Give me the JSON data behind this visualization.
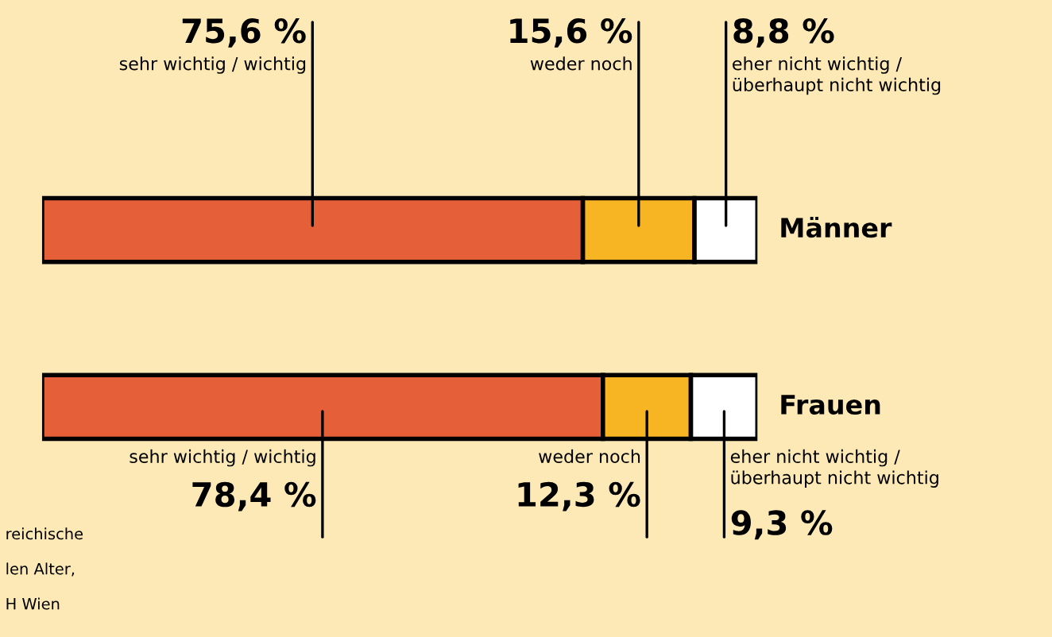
{
  "chart_data": {
    "type": "bar",
    "orientation": "horizontal",
    "stacked": true,
    "xlim": [
      0,
      100
    ],
    "tick_labels": false,
    "legend": false,
    "categories": [
      "Männer",
      "Frauen"
    ],
    "series": [
      {
        "name": "sehr wichtig / wichtig",
        "color": "#e55f38",
        "values": [
          75.6,
          78.4
        ],
        "value_labels": [
          "75,6 %",
          "78,4 %"
        ]
      },
      {
        "name": "weder noch",
        "color": "#f7b423",
        "values": [
          15.6,
          12.3
        ],
        "value_labels": [
          "15,6 %",
          "12,3 %"
        ]
      },
      {
        "name": "eher nicht wichtig / überhaupt nicht wichtig",
        "color": "#ffffff",
        "values": [
          8.8,
          9.3
        ],
        "value_labels": [
          "8,8 %",
          "9,3 %"
        ]
      }
    ],
    "annotations": [
      "reichische",
      "len Alter,",
      "H Wien"
    ]
  }
}
